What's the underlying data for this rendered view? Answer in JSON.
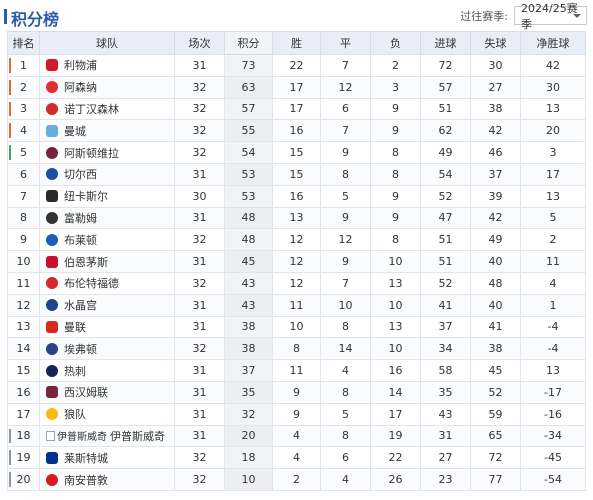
{
  "title": "积分榜",
  "season_filter": {
    "label": "过往赛季:",
    "value": "2024/25赛季"
  },
  "columns": [
    "排名",
    "球队",
    "场次",
    "积分",
    "胜",
    "平",
    "负",
    "进球",
    "失球",
    "净胜球"
  ],
  "colors": {
    "accent": "#2a5ea8",
    "ucl": "#e06c2e",
    "uel": "#3ba76a",
    "relegation": "#8b96a6"
  },
  "rows": [
    {
      "rank": "1",
      "team": "利物浦",
      "played": "31",
      "points": "73",
      "won": "22",
      "drawn": "7",
      "lost": "2",
      "gf": "72",
      "ga": "30",
      "gd": "42",
      "zone": "ucl",
      "badge": "#d3172c",
      "badge_icon": "liverpool-crest-icon"
    },
    {
      "rank": "2",
      "team": "阿森纳",
      "played": "32",
      "points": "63",
      "won": "17",
      "drawn": "12",
      "lost": "3",
      "gf": "57",
      "ga": "27",
      "gd": "30",
      "zone": "ucl",
      "badge": "#e32f2f",
      "badge_icon": "arsenal-crest-icon"
    },
    {
      "rank": "3",
      "team": "诺丁汉森林",
      "played": "32",
      "points": "57",
      "won": "17",
      "drawn": "6",
      "lost": "9",
      "gf": "51",
      "ga": "38",
      "gd": "13",
      "zone": "ucl",
      "badge": "#d02a2a",
      "badge_icon": "nottingham-forest-crest-icon"
    },
    {
      "rank": "4",
      "team": "曼城",
      "played": "32",
      "points": "55",
      "won": "16",
      "drawn": "7",
      "lost": "9",
      "gf": "62",
      "ga": "42",
      "gd": "20",
      "zone": "ucl",
      "badge": "#6cabdd",
      "badge_icon": "man-city-crest-icon"
    },
    {
      "rank": "5",
      "team": "阿斯顿维拉",
      "played": "32",
      "points": "54",
      "won": "15",
      "drawn": "9",
      "lost": "8",
      "gf": "49",
      "ga": "46",
      "gd": "3",
      "zone": "uel",
      "badge": "#7a1f3d",
      "badge_icon": "aston-villa-crest-icon"
    },
    {
      "rank": "6",
      "team": "切尔西",
      "played": "31",
      "points": "53",
      "won": "15",
      "drawn": "8",
      "lost": "8",
      "gf": "54",
      "ga": "37",
      "gd": "17",
      "zone": "",
      "badge": "#1c4fa1",
      "badge_icon": "chelsea-crest-icon"
    },
    {
      "rank": "7",
      "team": "纽卡斯尔",
      "played": "30",
      "points": "53",
      "won": "16",
      "drawn": "5",
      "lost": "9",
      "gf": "52",
      "ga": "39",
      "gd": "13",
      "zone": "",
      "badge": "#2b2b2b",
      "badge_icon": "newcastle-crest-icon"
    },
    {
      "rank": "8",
      "team": "富勒姆",
      "played": "31",
      "points": "48",
      "won": "13",
      "drawn": "9",
      "lost": "9",
      "gf": "47",
      "ga": "42",
      "gd": "5",
      "zone": "",
      "badge": "#333333",
      "badge_icon": "fulham-crest-icon"
    },
    {
      "rank": "9",
      "team": "布莱顿",
      "played": "32",
      "points": "48",
      "won": "12",
      "drawn": "12",
      "lost": "8",
      "gf": "51",
      "ga": "49",
      "gd": "2",
      "zone": "",
      "badge": "#1a5fb4",
      "badge_icon": "brighton-crest-icon"
    },
    {
      "rank": "10",
      "team": "伯恩茅斯",
      "played": "31",
      "points": "45",
      "won": "12",
      "drawn": "9",
      "lost": "10",
      "gf": "51",
      "ga": "40",
      "gd": "11",
      "zone": "",
      "badge": "#c8102e",
      "badge_icon": "bournemouth-crest-icon"
    },
    {
      "rank": "11",
      "team": "布伦特福德",
      "played": "32",
      "points": "43",
      "won": "12",
      "drawn": "7",
      "lost": "13",
      "gf": "52",
      "ga": "48",
      "gd": "4",
      "zone": "",
      "badge": "#d5292b",
      "badge_icon": "brentford-crest-icon"
    },
    {
      "rank": "12",
      "team": "水晶宫",
      "played": "31",
      "points": "43",
      "won": "11",
      "drawn": "10",
      "lost": "10",
      "gf": "41",
      "ga": "40",
      "gd": "1",
      "zone": "",
      "badge": "#1b458f",
      "badge_icon": "crystal-palace-crest-icon"
    },
    {
      "rank": "13",
      "team": "曼联",
      "played": "31",
      "points": "38",
      "won": "10",
      "drawn": "8",
      "lost": "13",
      "gf": "37",
      "ga": "41",
      "gd": "-4",
      "zone": "",
      "badge": "#da291c",
      "badge_icon": "man-united-crest-icon"
    },
    {
      "rank": "14",
      "team": "埃弗顿",
      "played": "32",
      "points": "38",
      "won": "8",
      "drawn": "14",
      "lost": "10",
      "gf": "34",
      "ga": "38",
      "gd": "-4",
      "zone": "",
      "badge": "#274488",
      "badge_icon": "everton-crest-icon"
    },
    {
      "rank": "15",
      "team": "热刺",
      "played": "31",
      "points": "37",
      "won": "11",
      "drawn": "4",
      "lost": "16",
      "gf": "58",
      "ga": "45",
      "gd": "13",
      "zone": "",
      "badge": "#132257",
      "badge_icon": "tottenham-crest-icon"
    },
    {
      "rank": "16",
      "team": "西汉姆联",
      "played": "31",
      "points": "35",
      "won": "9",
      "drawn": "8",
      "lost": "14",
      "gf": "35",
      "ga": "52",
      "gd": "-17",
      "zone": "",
      "badge": "#7a263a",
      "badge_icon": "west-ham-crest-icon"
    },
    {
      "rank": "17",
      "team": "狼队",
      "played": "31",
      "points": "32",
      "won": "9",
      "drawn": "5",
      "lost": "17",
      "gf": "43",
      "ga": "59",
      "gd": "-16",
      "zone": "",
      "badge": "#fdb913",
      "badge_icon": "wolves-crest-icon"
    },
    {
      "rank": "18",
      "team": "伊普斯威奇",
      "team_alt": "伊普斯威奇",
      "played": "31",
      "points": "20",
      "won": "4",
      "drawn": "8",
      "lost": "19",
      "gf": "31",
      "ga": "65",
      "gd": "-34",
      "zone": "relegation",
      "badge": "",
      "badge_icon": "broken-image-icon"
    },
    {
      "rank": "19",
      "team": "莱斯特城",
      "played": "32",
      "points": "18",
      "won": "4",
      "drawn": "6",
      "lost": "22",
      "gf": "27",
      "ga": "72",
      "gd": "-45",
      "zone": "relegation",
      "badge": "#003090",
      "badge_icon": "leicester-crest-icon"
    },
    {
      "rank": "20",
      "team": "南安普敦",
      "played": "32",
      "points": "10",
      "won": "2",
      "drawn": "4",
      "lost": "26",
      "gf": "23",
      "ga": "77",
      "gd": "-54",
      "zone": "relegation",
      "badge": "#d71920",
      "badge_icon": "southampton-crest-icon"
    }
  ]
}
